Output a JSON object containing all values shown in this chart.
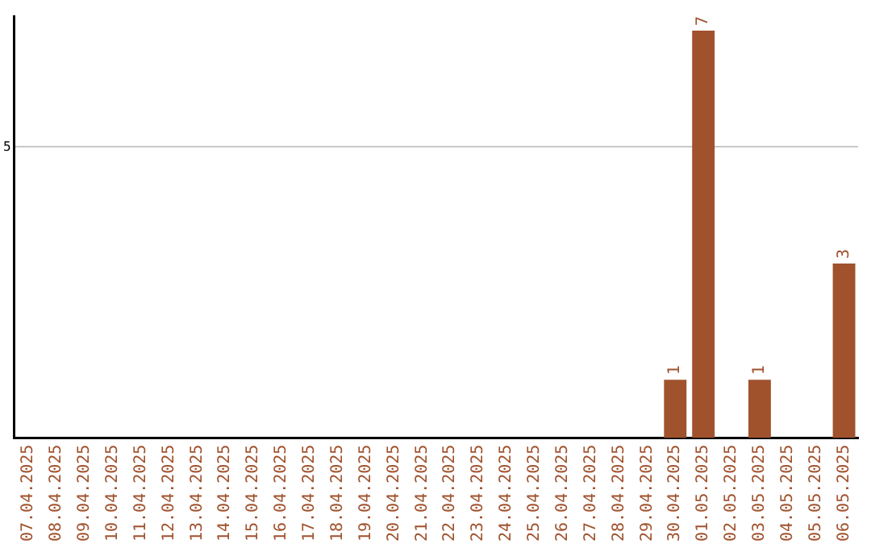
{
  "chart_data": {
    "type": "bar",
    "categories": [
      "07.04.2025",
      "08.04.2025",
      "09.04.2025",
      "10.04.2025",
      "11.04.2025",
      "12.04.2025",
      "13.04.2025",
      "14.04.2025",
      "15.04.2025",
      "16.04.2025",
      "17.04.2025",
      "18.04.2025",
      "19.04.2025",
      "20.04.2025",
      "21.04.2025",
      "22.04.2025",
      "23.04.2025",
      "24.04.2025",
      "25.04.2025",
      "26.04.2025",
      "27.04.2025",
      "28.04.2025",
      "29.04.2025",
      "30.04.2025",
      "01.05.2025",
      "02.05.2025",
      "03.05.2025",
      "04.05.2025",
      "05.05.2025",
      "06.05.2025"
    ],
    "values": [
      null,
      null,
      null,
      null,
      null,
      null,
      null,
      null,
      null,
      null,
      null,
      null,
      null,
      null,
      null,
      null,
      null,
      null,
      null,
      null,
      null,
      null,
      null,
      1,
      7,
      null,
      1,
      null,
      null,
      3
    ],
    "data_labels": true,
    "color": "#a0522d",
    "ylim": [
      0,
      7.25
    ],
    "yticks": [
      5
    ],
    "grid": "y",
    "legend": false
  }
}
